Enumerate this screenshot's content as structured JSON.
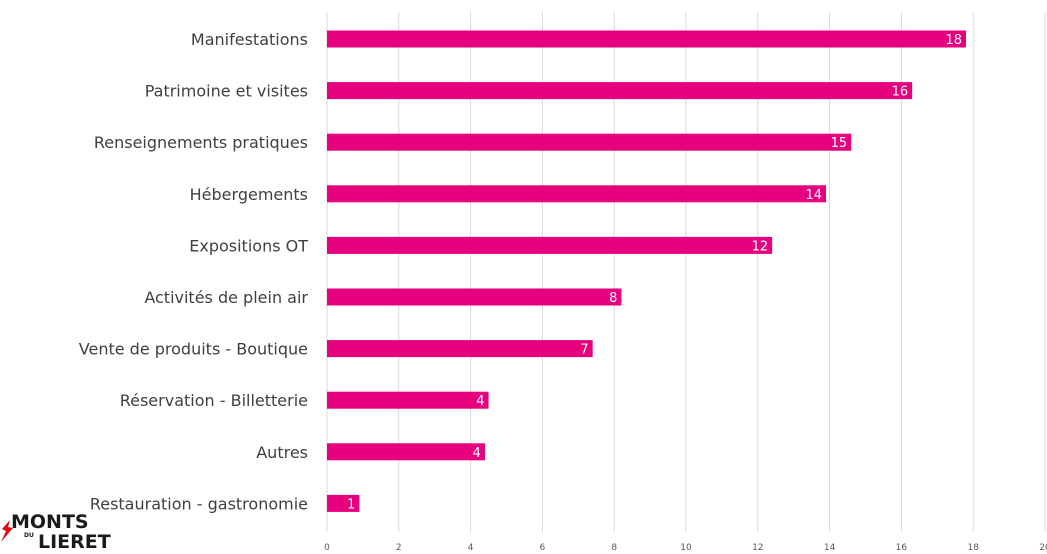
{
  "logo": {
    "line1": "MONTS",
    "small": "DU",
    "line2": "LIERET"
  },
  "colors": {
    "bar": "#e6007e",
    "grid": "#d9d9d9"
  },
  "chart_data": {
    "type": "bar",
    "orientation": "horizontal",
    "title": "",
    "xlabel": "",
    "ylabel": "",
    "xlim": [
      0,
      20
    ],
    "x_ticks": [
      0,
      2,
      4,
      6,
      8,
      10,
      12,
      14,
      16,
      18,
      20
    ],
    "grid": true,
    "legend": "none",
    "categories": [
      "Manifestations",
      "Patrimoine et visites",
      "Renseignements pratiques",
      "Hébergements",
      "Expositions OT",
      "Activités de plein air",
      "Vente de produits - Boutique",
      "Réservation - Billetterie",
      "Autres",
      "Restauration - gastronomie"
    ],
    "values": [
      17.8,
      16.3,
      14.6,
      13.9,
      12.4,
      8.2,
      7.4,
      4.5,
      4.4,
      0.9
    ],
    "data_labels": [
      "18",
      "16",
      "15",
      "14",
      "12",
      "8",
      "7",
      "4",
      "4",
      "1"
    ]
  }
}
